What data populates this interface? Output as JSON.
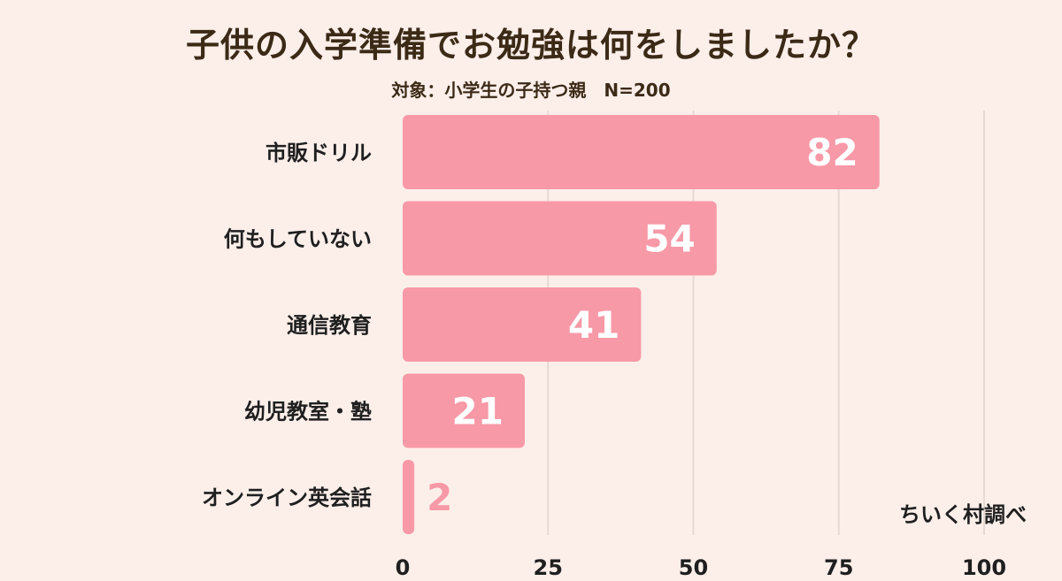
{
  "header": {
    "title": "子供の入学準備でお勉強は何をしましたか？",
    "subtitle": "対象：小学生の子持つ親　N=200"
  },
  "credit": "ちいく村調べ",
  "colors": {
    "background": "#fcefea",
    "bar": "#f799a7",
    "value_label_inside": "#ffffff",
    "value_label_outside": "#f799a7",
    "category_text": "#1f1f1f",
    "grid": "#e6d9d4",
    "title_text": "#3b2a16"
  },
  "chart_data": {
    "type": "bar",
    "orientation": "horizontal",
    "title": "子供の入学準備でお勉強は何をしましたか？",
    "subtitle": "対象：小学生の子持つ親　N=200",
    "categories": [
      "市販ドリル",
      "何もしていない",
      "通信教育",
      "幼児教室・塾",
      "オンライン英会話"
    ],
    "values": [
      82,
      54,
      41,
      21,
      2
    ],
    "xlim": [
      0,
      100
    ],
    "xticks": [
      0,
      25,
      50,
      75,
      100
    ],
    "grid": true,
    "xlabel": "",
    "ylabel": ""
  }
}
